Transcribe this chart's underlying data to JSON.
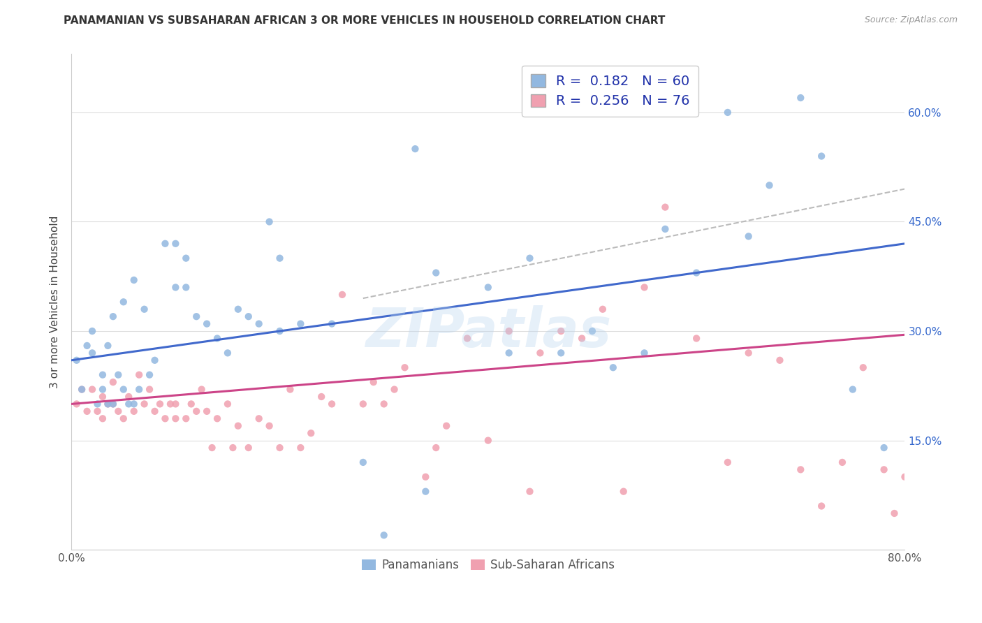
{
  "title": "PANAMANIAN VS SUBSAHARAN AFRICAN 3 OR MORE VEHICLES IN HOUSEHOLD CORRELATION CHART",
  "source": "Source: ZipAtlas.com",
  "ylabel": "3 or more Vehicles in Household",
  "xlim": [
    0.0,
    0.8
  ],
  "ylim": [
    0.0,
    0.68
  ],
  "xticks": [
    0.0,
    0.1,
    0.2,
    0.3,
    0.4,
    0.5,
    0.6,
    0.7,
    0.8
  ],
  "yticks": [
    0.0,
    0.15,
    0.3,
    0.45,
    0.6
  ],
  "blue_color": "#92b8e0",
  "pink_color": "#f0a0b0",
  "blue_line_color": "#4169cc",
  "pink_line_color": "#cc4488",
  "dashed_line_color": "#bbbbbb",
  "watermark": "ZIPatlas",
  "blue_scatter_x": [
    0.005,
    0.01,
    0.015,
    0.02,
    0.02,
    0.025,
    0.03,
    0.03,
    0.035,
    0.035,
    0.04,
    0.04,
    0.045,
    0.05,
    0.05,
    0.055,
    0.06,
    0.06,
    0.065,
    0.07,
    0.075,
    0.08,
    0.09,
    0.1,
    0.1,
    0.11,
    0.11,
    0.12,
    0.13,
    0.14,
    0.15,
    0.16,
    0.17,
    0.18,
    0.19,
    0.2,
    0.2,
    0.22,
    0.25,
    0.28,
    0.3,
    0.33,
    0.34,
    0.35,
    0.4,
    0.42,
    0.44,
    0.47,
    0.5,
    0.52,
    0.55,
    0.57,
    0.6,
    0.63,
    0.65,
    0.67,
    0.7,
    0.72,
    0.75,
    0.78
  ],
  "blue_scatter_y": [
    0.26,
    0.22,
    0.28,
    0.27,
    0.3,
    0.2,
    0.22,
    0.24,
    0.2,
    0.28,
    0.2,
    0.32,
    0.24,
    0.22,
    0.34,
    0.2,
    0.2,
    0.37,
    0.22,
    0.33,
    0.24,
    0.26,
    0.42,
    0.36,
    0.42,
    0.36,
    0.4,
    0.32,
    0.31,
    0.29,
    0.27,
    0.33,
    0.32,
    0.31,
    0.45,
    0.3,
    0.4,
    0.31,
    0.31,
    0.12,
    0.02,
    0.55,
    0.08,
    0.38,
    0.36,
    0.27,
    0.4,
    0.27,
    0.3,
    0.25,
    0.27,
    0.44,
    0.38,
    0.6,
    0.43,
    0.5,
    0.62,
    0.54,
    0.22,
    0.14
  ],
  "pink_scatter_x": [
    0.005,
    0.01,
    0.015,
    0.02,
    0.025,
    0.03,
    0.03,
    0.035,
    0.04,
    0.04,
    0.045,
    0.05,
    0.055,
    0.06,
    0.065,
    0.07,
    0.075,
    0.08,
    0.085,
    0.09,
    0.095,
    0.1,
    0.1,
    0.11,
    0.115,
    0.12,
    0.125,
    0.13,
    0.135,
    0.14,
    0.15,
    0.155,
    0.16,
    0.17,
    0.18,
    0.19,
    0.2,
    0.21,
    0.22,
    0.23,
    0.24,
    0.25,
    0.26,
    0.28,
    0.29,
    0.3,
    0.31,
    0.32,
    0.34,
    0.35,
    0.36,
    0.38,
    0.4,
    0.42,
    0.44,
    0.45,
    0.47,
    0.49,
    0.51,
    0.53,
    0.55,
    0.57,
    0.6,
    0.63,
    0.65,
    0.68,
    0.7,
    0.72,
    0.74,
    0.76,
    0.78,
    0.79,
    0.8
  ],
  "pink_scatter_y": [
    0.2,
    0.22,
    0.19,
    0.22,
    0.19,
    0.18,
    0.21,
    0.2,
    0.2,
    0.23,
    0.19,
    0.18,
    0.21,
    0.19,
    0.24,
    0.2,
    0.22,
    0.19,
    0.2,
    0.18,
    0.2,
    0.18,
    0.2,
    0.18,
    0.2,
    0.19,
    0.22,
    0.19,
    0.14,
    0.18,
    0.2,
    0.14,
    0.17,
    0.14,
    0.18,
    0.17,
    0.14,
    0.22,
    0.14,
    0.16,
    0.21,
    0.2,
    0.35,
    0.2,
    0.23,
    0.2,
    0.22,
    0.25,
    0.1,
    0.14,
    0.17,
    0.29,
    0.15,
    0.3,
    0.08,
    0.27,
    0.3,
    0.29,
    0.33,
    0.08,
    0.36,
    0.47,
    0.29,
    0.12,
    0.27,
    0.26,
    0.11,
    0.06,
    0.12,
    0.25,
    0.11,
    0.05,
    0.1
  ],
  "blue_line_x": [
    0.0,
    0.8
  ],
  "blue_line_y_start": 0.26,
  "blue_line_y_end": 0.42,
  "pink_line_x": [
    0.0,
    0.8
  ],
  "pink_line_y_start": 0.2,
  "pink_line_y_end": 0.295,
  "dashed_line_x": [
    0.28,
    0.8
  ],
  "dashed_line_y_start": 0.345,
  "dashed_line_y_end": 0.495
}
